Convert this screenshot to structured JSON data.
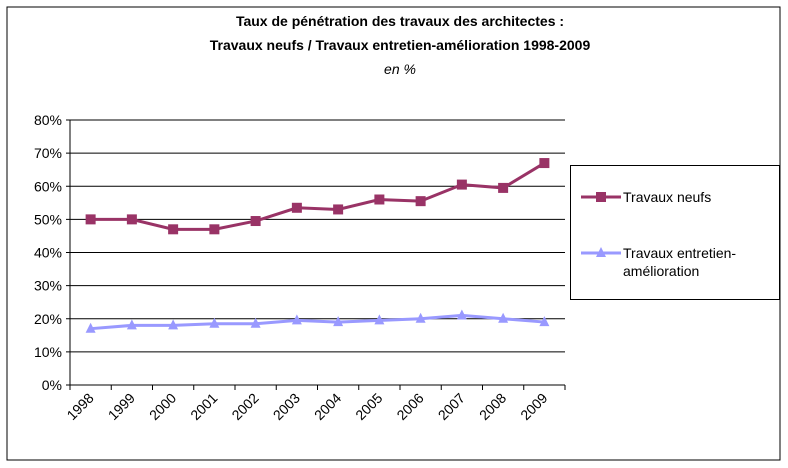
{
  "chart_data": {
    "type": "line",
    "title": "Taux de pénétration des travaux des architectes :",
    "subtitle": "Travaux neufs / Travaux entretien-amélioration 1998-2009",
    "unit_note": "en %",
    "categories": [
      "1998",
      "1999",
      "2000",
      "2001",
      "2002",
      "2003",
      "2004",
      "2005",
      "2006",
      "2007",
      "2008",
      "2009"
    ],
    "series": [
      {
        "name": "Travaux neufs",
        "color": "#993366",
        "marker": "square",
        "values": [
          50,
          50,
          47,
          47,
          49.5,
          53.5,
          53,
          56,
          55.5,
          60.5,
          59.5,
          67
        ]
      },
      {
        "name": "Travaux entretien-amélioration",
        "color": "#9999ff",
        "marker": "triangle",
        "values": [
          17,
          18,
          18,
          18.5,
          18.5,
          19.5,
          19,
          19.5,
          20,
          21,
          20,
          19
        ]
      }
    ],
    "ylim": [
      0,
      80
    ],
    "yticks": [
      {
        "value": 0,
        "label": "0%"
      },
      {
        "value": 10,
        "label": "10%"
      },
      {
        "value": 20,
        "label": "20%"
      },
      {
        "value": 30,
        "label": "30%"
      },
      {
        "value": 40,
        "label": "40%"
      },
      {
        "value": 50,
        "label": "50%"
      },
      {
        "value": 60,
        "label": "60%"
      },
      {
        "value": 70,
        "label": "70%"
      },
      {
        "value": 80,
        "label": "80%"
      }
    ],
    "grid": true,
    "legend": "right"
  }
}
